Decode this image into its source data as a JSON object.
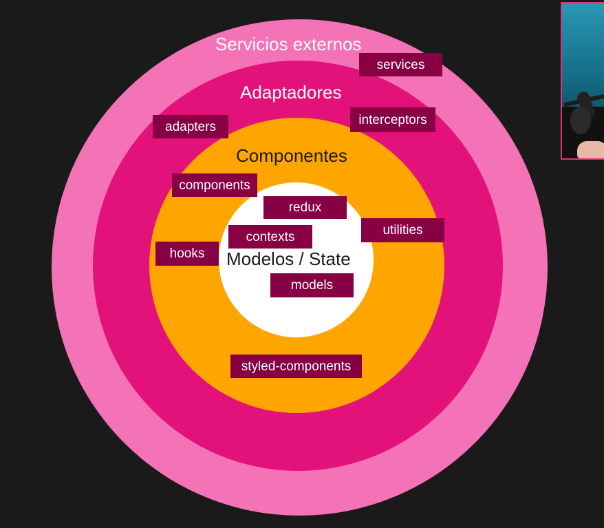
{
  "diagram": {
    "layers": {
      "outer": {
        "title": "Servicios externos",
        "color": "#f472b6"
      },
      "adapters": {
        "title": "Adaptadores",
        "color": "#e2127a"
      },
      "components": {
        "title": "Componentes",
        "color": "#ffa500"
      },
      "core": {
        "title": "Modelos / State",
        "color": "#ffffff"
      }
    },
    "tags": {
      "services": "services",
      "interceptors": "interceptors",
      "adapters": "adapters",
      "components": "components",
      "redux": "redux",
      "utilities": "utilities",
      "contexts": "contexts",
      "hooks": "hooks",
      "models": "models",
      "styled_components": "styled-components"
    },
    "tag_color": "#870044"
  },
  "webcam": {
    "icon": "presenter-video-icon"
  }
}
